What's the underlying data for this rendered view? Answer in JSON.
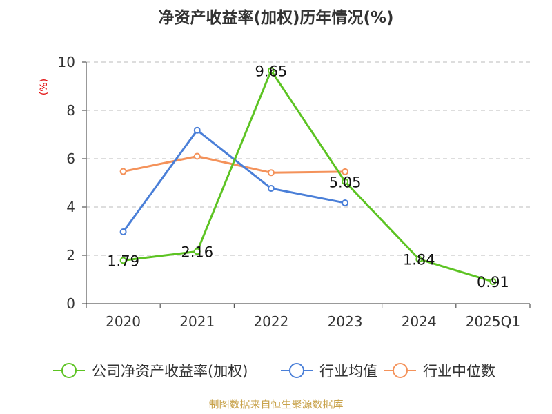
{
  "chart_data": {
    "type": "line",
    "title": "净资产收益率(加权)历年情况(%)",
    "unit_label": "(%)",
    "categories": [
      "2020",
      "2021",
      "2022",
      "2023",
      "2024",
      "2025Q1"
    ],
    "ylim": [
      0,
      10
    ],
    "yticks": [
      0,
      2,
      4,
      6,
      8,
      10
    ],
    "grid": true,
    "legend_position": "bottom",
    "series": [
      {
        "name": "公司净资产收益率(加权)",
        "color": "#5cc322",
        "values": [
          1.79,
          2.16,
          9.65,
          5.05,
          1.84,
          0.91
        ],
        "labels": [
          "1.79",
          "2.16",
          "9.65",
          "5.05",
          "1.84",
          "0.91"
        ]
      },
      {
        "name": "行业均值",
        "color": "#4a7fd8",
        "values": [
          2.97,
          7.18,
          4.77,
          4.17,
          null,
          null
        ]
      },
      {
        "name": "行业中位数",
        "color": "#f4925a",
        "values": [
          5.47,
          6.1,
          5.42,
          5.46,
          null,
          null
        ]
      }
    ],
    "source": "制图数据来自恒生聚源数据库"
  }
}
